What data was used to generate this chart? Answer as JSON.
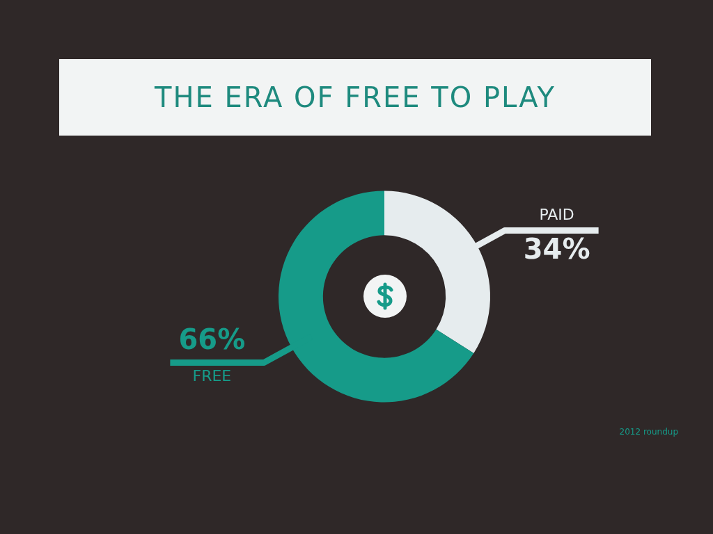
{
  "chart_data": {
    "type": "donut",
    "title": "THE ERA OF FREE TO PLAY",
    "categories": [
      "PAID",
      "FREE"
    ],
    "values": [
      34,
      66
    ],
    "colors": [
      "#e6ecee",
      "#169b89"
    ],
    "value_labels": [
      "34%",
      "66%"
    ],
    "annotations": [
      "2012 roundup"
    ]
  }
}
